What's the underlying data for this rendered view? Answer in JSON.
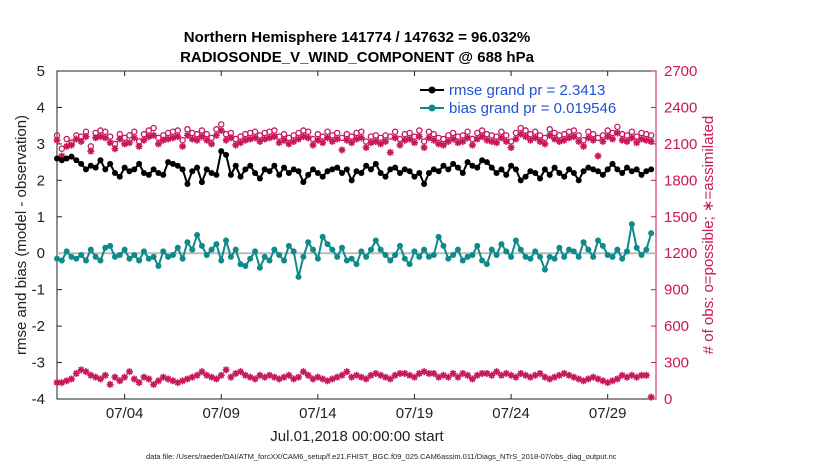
{
  "chart_data": {
    "type": "line",
    "title": "Northern Hemisphere 141774 / 147632 = 96.032%",
    "subtitle": "RADIOSONDE_V_WIND_COMPONENT @ 688 hPa",
    "xlabel": "Jul.01,2018 00:00:00 start",
    "ylabel": "rmse and bias (model - observation)",
    "ylabel_right": "# of obs: o=possible; ∗=assimilated",
    "ylim": [
      -4,
      5
    ],
    "ylim_right": [
      0,
      2700
    ],
    "yticks": [
      "5",
      "4",
      "3",
      "2",
      "1",
      "0",
      "-1",
      "-2",
      "-3",
      "-4"
    ],
    "yticks_right": [
      "2700",
      "2400",
      "2100",
      "1800",
      "1500",
      "1200",
      "900",
      "600",
      "300",
      "0"
    ],
    "xlim": [
      0,
      124
    ],
    "xticks": [
      {
        "label": "07/04",
        "x": 14
      },
      {
        "label": "07/09",
        "x": 34
      },
      {
        "label": "07/14",
        "x": 54
      },
      {
        "label": "07/19",
        "x": 74
      },
      {
        "label": "07/24",
        "x": 94
      },
      {
        "label": "07/29",
        "x": 114
      }
    ],
    "grid": false,
    "zero_line": true,
    "legend": [
      {
        "label": "rmse grand pr = 2.3413",
        "color": "#000000"
      },
      {
        "label": "bias grand pr = 0.019546",
        "color": "#0e8a8a"
      }
    ],
    "footnote": "data file: /Users/raeder/DAI/ATM_forcXX/CAM6_setup/f.e21.FHIST_BGC.f09_025.CAM6assim.011/Diags_NTrS_2018-07/obs_diag_output.nc",
    "series": [
      {
        "name": "rmse",
        "axis": "left",
        "color": "#000000",
        "values": [
          2.6,
          2.55,
          2.6,
          2.65,
          2.55,
          2.45,
          2.3,
          2.4,
          2.35,
          2.55,
          2.3,
          2.45,
          2.2,
          2.1,
          2.35,
          2.25,
          2.3,
          2.45,
          2.2,
          2.15,
          2.3,
          2.2,
          2.15,
          2.5,
          2.45,
          2.4,
          2.3,
          1.9,
          2.25,
          2.35,
          1.95,
          2.3,
          2.2,
          2.15,
          2.8,
          2.7,
          2.15,
          2.4,
          2.1,
          2.3,
          2.4,
          2.2,
          2.05,
          2.3,
          2.25,
          2.4,
          2.15,
          2.35,
          2.2,
          2.3,
          2.25,
          1.95,
          2.15,
          2.3,
          2.2,
          2.1,
          2.25,
          2.3,
          2.35,
          2.2,
          2.3,
          2.0,
          2.25,
          2.2,
          2.4,
          2.3,
          2.45,
          2.2,
          2.1,
          2.3,
          2.35,
          2.2,
          2.3,
          2.25,
          2.1,
          2.2,
          1.9,
          2.2,
          2.3,
          2.25,
          2.4,
          2.3,
          2.45,
          2.35,
          2.2,
          2.5,
          2.4,
          2.35,
          2.55,
          2.5,
          2.35,
          2.2,
          2.3,
          2.15,
          2.4,
          2.3,
          2.0,
          2.1,
          2.25,
          2.2,
          2.05,
          2.3,
          2.15,
          2.35,
          2.2,
          2.1,
          2.3,
          2.2,
          2.0,
          2.25,
          2.35,
          2.3,
          2.25,
          2.15,
          2.3,
          2.45,
          2.3,
          2.2,
          2.35,
          2.25,
          2.3,
          2.15,
          2.25,
          2.3
        ]
      },
      {
        "name": "bias",
        "axis": "left",
        "color": "#0e8a8a",
        "values": [
          -0.15,
          -0.2,
          0.05,
          -0.1,
          -0.15,
          -0.05,
          -0.2,
          0.1,
          -0.1,
          -0.2,
          0.15,
          0.2,
          -0.1,
          -0.05,
          0.1,
          -0.15,
          -0.05,
          -0.2,
          0.05,
          -0.15,
          -0.1,
          -0.35,
          0.05,
          -0.1,
          -0.05,
          0.15,
          -0.15,
          0.3,
          0.1,
          0.5,
          0.2,
          -0.05,
          0.1,
          0.25,
          -0.2,
          0.35,
          -0.1,
          0.1,
          -0.3,
          -0.35,
          -0.15,
          0.05,
          -0.4,
          -0.1,
          -0.2,
          0.1,
          -0.05,
          -0.2,
          0.2,
          0.05,
          -0.65,
          -0.1,
          0.3,
          0.1,
          -0.15,
          0.45,
          0.25,
          0.1,
          -0.1,
          0.15,
          -0.2,
          -0.15,
          -0.3,
          0.05,
          -0.1,
          0.1,
          0.35,
          0.1,
          -0.05,
          -0.2,
          -0.05,
          0.2,
          -0.15,
          -0.3,
          0.05,
          -0.1,
          0.1,
          -0.1,
          -0.05,
          0.45,
          0.2,
          -0.15,
          -0.05,
          0.1,
          -0.2,
          -0.1,
          -0.05,
          0.2,
          -0.2,
          -0.3,
          0.1,
          -0.05,
          0.25,
          0.05,
          -0.1,
          0.35,
          0.1,
          -0.1,
          -0.15,
          0.05,
          -0.1,
          -0.45,
          -0.1,
          -0.15,
          0.15,
          -0.1,
          0.1,
          0.05,
          -0.1,
          0.3,
          0.1,
          -0.1,
          0.35,
          0.2,
          -0.05,
          -0.1,
          0.1,
          -0.15,
          0.05,
          0.8,
          0.15,
          -0.05,
          0.1,
          0.55
        ]
      },
      {
        "name": "possible",
        "axis": "right",
        "marker": "o",
        "color": "#c8175a",
        "values": [
          2170,
          2060,
          2140,
          2110,
          2170,
          2160,
          2200,
          2080,
          2190,
          2210,
          2200,
          2160,
          2100,
          2180,
          2150,
          2170,
          2200,
          2120,
          2180,
          2210,
          2230,
          2150,
          2170,
          2190,
          2200,
          2210,
          2130,
          2220,
          2190,
          2180,
          2210,
          2180,
          2150,
          2220,
          2260,
          2180,
          2190,
          2140,
          2160,
          2180,
          2190,
          2200,
          2170,
          2190,
          2200,
          2210,
          2160,
          2180,
          2150,
          2170,
          2190,
          2210,
          2200,
          2140,
          2180,
          2160,
          2200,
          2170,
          2190,
          2150,
          2180,
          2160,
          2190,
          2200,
          2120,
          2160,
          2170,
          2150,
          2170,
          2160,
          2200,
          2140,
          2180,
          2190,
          2160,
          2210,
          2120,
          2200,
          2180,
          2150,
          2140,
          2170,
          2190,
          2160,
          2170,
          2200,
          2140,
          2190,
          2210,
          2180,
          2170,
          2160,
          2200,
          2170,
          2120,
          2190,
          2230,
          2210,
          2180,
          2200,
          2170,
          2150,
          2220,
          2190,
          2170,
          2180,
          2200,
          2210,
          2170,
          2130,
          2200,
          2180,
          2150,
          2170,
          2210,
          2190,
          2240,
          2180,
          2170,
          2200,
          2160,
          2190,
          2180,
          2170
        ]
      },
      {
        "name": "assimilated",
        "axis": "right",
        "marker": "*",
        "color": "#c8175a",
        "values": [
          2130,
          2000,
          2080,
          2090,
          2140,
          2120,
          2160,
          2040,
          2150,
          2160,
          2150,
          2110,
          2060,
          2140,
          2100,
          2110,
          2150,
          2080,
          2130,
          2160,
          2170,
          2100,
          2130,
          2140,
          2150,
          2160,
          2080,
          2170,
          2140,
          2130,
          2160,
          2130,
          2100,
          2170,
          2210,
          2130,
          2150,
          2090,
          2110,
          2130,
          2140,
          2150,
          2120,
          2140,
          2150,
          2160,
          2110,
          2130,
          2100,
          2120,
          2140,
          2160,
          2150,
          2090,
          2130,
          2110,
          2150,
          2120,
          2140,
          2050,
          2130,
          2110,
          2140,
          2150,
          2070,
          2110,
          2120,
          2100,
          2120,
          2030,
          2150,
          2090,
          2130,
          2140,
          2110,
          2160,
          2070,
          2150,
          2130,
          2100,
          2090,
          2120,
          2140,
          2110,
          2120,
          2150,
          2090,
          2140,
          2160,
          2130,
          2120,
          2110,
          2150,
          2120,
          2070,
          2140,
          2180,
          2160,
          2130,
          2150,
          2120,
          2100,
          2170,
          2140,
          2120,
          2130,
          2150,
          2160,
          2120,
          2080,
          2150,
          2130,
          2000,
          2120,
          2160,
          2140,
          2190,
          2130,
          2120,
          2150,
          2110,
          2140,
          2130,
          2120
        ]
      },
      {
        "name": "bottom-count",
        "axis": "left",
        "marker": "*",
        "color": "#c8175a",
        "values": [
          -3.55,
          -3.55,
          -3.5,
          -3.45,
          -3.3,
          -3.2,
          -3.25,
          -3.35,
          -3.4,
          -3.45,
          -3.35,
          -3.6,
          -3.4,
          -3.5,
          -3.4,
          -3.25,
          -3.45,
          -3.55,
          -3.4,
          -3.45,
          -3.6,
          -3.5,
          -3.4,
          -3.45,
          -3.5,
          -3.55,
          -3.5,
          -3.45,
          -3.4,
          -3.35,
          -3.25,
          -3.35,
          -3.4,
          -3.45,
          -3.35,
          -3.2,
          -3.4,
          -3.3,
          -3.25,
          -3.35,
          -3.4,
          -3.45,
          -3.35,
          -3.4,
          -3.35,
          -3.4,
          -3.45,
          -3.4,
          -3.35,
          -3.45,
          -3.4,
          -3.25,
          -3.35,
          -3.45,
          -3.4,
          -3.45,
          -3.5,
          -3.45,
          -3.4,
          -3.35,
          -3.25,
          -3.4,
          -3.35,
          -3.4,
          -3.45,
          -3.35,
          -3.3,
          -3.35,
          -3.4,
          -3.45,
          -3.35,
          -3.3,
          -3.3,
          -3.35,
          -3.4,
          -3.3,
          -3.25,
          -3.3,
          -3.3,
          -3.4,
          -3.35,
          -3.4,
          -3.3,
          -3.4,
          -3.3,
          -3.35,
          -3.45,
          -3.35,
          -3.3,
          -3.3,
          -3.35,
          -3.25,
          -3.35,
          -3.3,
          -3.35,
          -3.4,
          -3.3,
          -3.35,
          -3.4,
          -3.35,
          -3.3,
          -3.4,
          -3.45,
          -3.4,
          -3.35,
          -3.3,
          -3.35,
          -3.4,
          -3.45,
          -3.5,
          -3.45,
          -3.4,
          -3.45,
          -3.5,
          -3.55,
          -3.5,
          -3.45,
          -3.35,
          -3.4,
          -3.35,
          -3.4,
          -3.35,
          -3.35,
          -3.95
        ]
      }
    ]
  }
}
